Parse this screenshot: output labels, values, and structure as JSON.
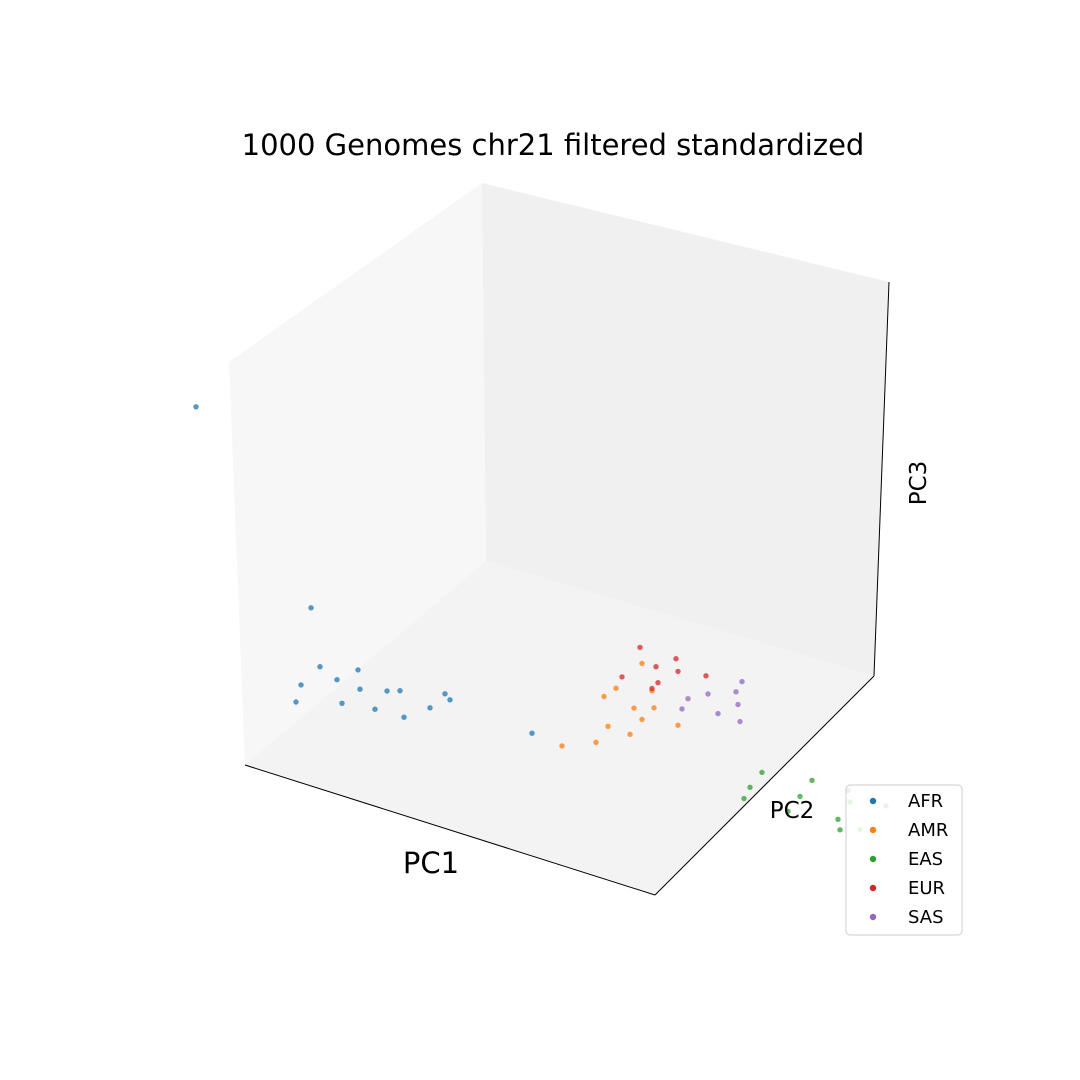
{
  "chart_data": {
    "type": "scatter",
    "projection": "3d",
    "title": "1000 Genomes chr21 filtered standardized",
    "xlabel": "PC1",
    "ylabel": "PC2",
    "zlabel": "PC3",
    "grid": false,
    "tick_labels": "none",
    "legend": {
      "position": "lower-right",
      "entries": [
        {
          "name": "AFR",
          "color": "#1f77b4"
        },
        {
          "name": "AMR",
          "color": "#ff7f0e"
        },
        {
          "name": "EAS",
          "color": "#2ca02c"
        },
        {
          "name": "EUR",
          "color": "#d62728"
        },
        {
          "name": "SAS",
          "color": "#9467bd"
        }
      ]
    },
    "series": [
      {
        "name": "AFR",
        "color": "#1f77b4",
        "points": [
          [
            -20.5,
            4.0,
            0.5
          ],
          [
            -14.0,
            3.0,
            0.6
          ],
          [
            -19.0,
            1.5,
            0.4
          ],
          [
            -15.5,
            2.0,
            1.2
          ],
          [
            -16.0,
            4.5,
            -0.2
          ],
          [
            -17.5,
            0.0,
            0.8
          ],
          [
            -13.0,
            1.0,
            0.3
          ],
          [
            -18.0,
            6.0,
            0.9
          ],
          [
            -8.0,
            -3.0,
            0.5
          ],
          [
            -11.0,
            2.0,
            0.4
          ],
          [
            -16.0,
            -1.0,
            0.7
          ],
          [
            -22.0,
            2.0,
            0.2
          ],
          [
            -15.0,
            6.5,
            0.3
          ],
          [
            -18.5,
            3.0,
            1.6
          ],
          [
            -20.0,
            18.0,
            17.0
          ],
          [
            -17.5,
            8.0,
            5.0
          ],
          [
            -12.5,
            0.0,
            2.2
          ]
        ]
      },
      {
        "name": "AMR",
        "color": "#ff7f0e",
        "points": [
          [
            3.0,
            1.0,
            0.3
          ],
          [
            1.0,
            -1.0,
            0.5
          ],
          [
            4.0,
            3.0,
            0.6
          ],
          [
            -1.0,
            -3.0,
            0.4
          ],
          [
            -4.0,
            -4.0,
            0.3
          ],
          [
            0.0,
            2.0,
            0.7
          ],
          [
            2.0,
            4.0,
            0.2
          ],
          [
            -7.0,
            -5.0,
            0.6
          ],
          [
            5.0,
            6.0,
            1.2
          ],
          [
            1.0,
            0.0,
            0.9
          ],
          [
            -2.0,
            -2.0,
            0.5
          ],
          [
            3.0,
            -2.0,
            0.6
          ]
        ]
      },
      {
        "name": "EAS",
        "color": "#2ca02c",
        "points": [
          [
            6.0,
            -12.0,
            0.4
          ],
          [
            8.0,
            -10.0,
            0.6
          ],
          [
            4.0,
            -14.0,
            0.3
          ],
          [
            9.0,
            -13.0,
            0.5
          ],
          [
            5.0,
            -9.0,
            0.7
          ],
          [
            7.0,
            -15.0,
            0.2
          ],
          [
            3.0,
            -11.0,
            0.6
          ],
          [
            10.0,
            -11.0,
            0.3
          ],
          [
            6.0,
            -17.0,
            0.5
          ],
          [
            8.0,
            -16.0,
            -0.1
          ],
          [
            11.0,
            -14.0,
            0.8
          ],
          [
            2.0,
            -12.0,
            0.2
          ]
        ]
      },
      {
        "name": "EUR",
        "color": "#d62728",
        "points": [
          [
            5.0,
            4.0,
            0.7
          ],
          [
            6.0,
            6.0,
            0.9
          ],
          [
            7.0,
            5.0,
            1.1
          ],
          [
            3.0,
            5.0,
            0.6
          ],
          [
            8.0,
            7.0,
            1.0
          ],
          [
            4.0,
            3.0,
            0.8
          ],
          [
            6.0,
            8.0,
            1.4
          ],
          [
            9.0,
            5.0,
            0.7
          ]
        ]
      },
      {
        "name": "SAS",
        "color": "#9467bd",
        "points": [
          [
            6.0,
            2.0,
            0.5
          ],
          [
            8.0,
            3.0,
            0.3
          ],
          [
            7.0,
            0.0,
            0.4
          ],
          [
            9.0,
            1.0,
            0.6
          ],
          [
            5.0,
            1.0,
            0.2
          ],
          [
            10.0,
            3.0,
            0.5
          ],
          [
            8.0,
            -1.0,
            0.3
          ],
          [
            11.0,
            4.0,
            0.8
          ]
        ]
      }
    ]
  }
}
